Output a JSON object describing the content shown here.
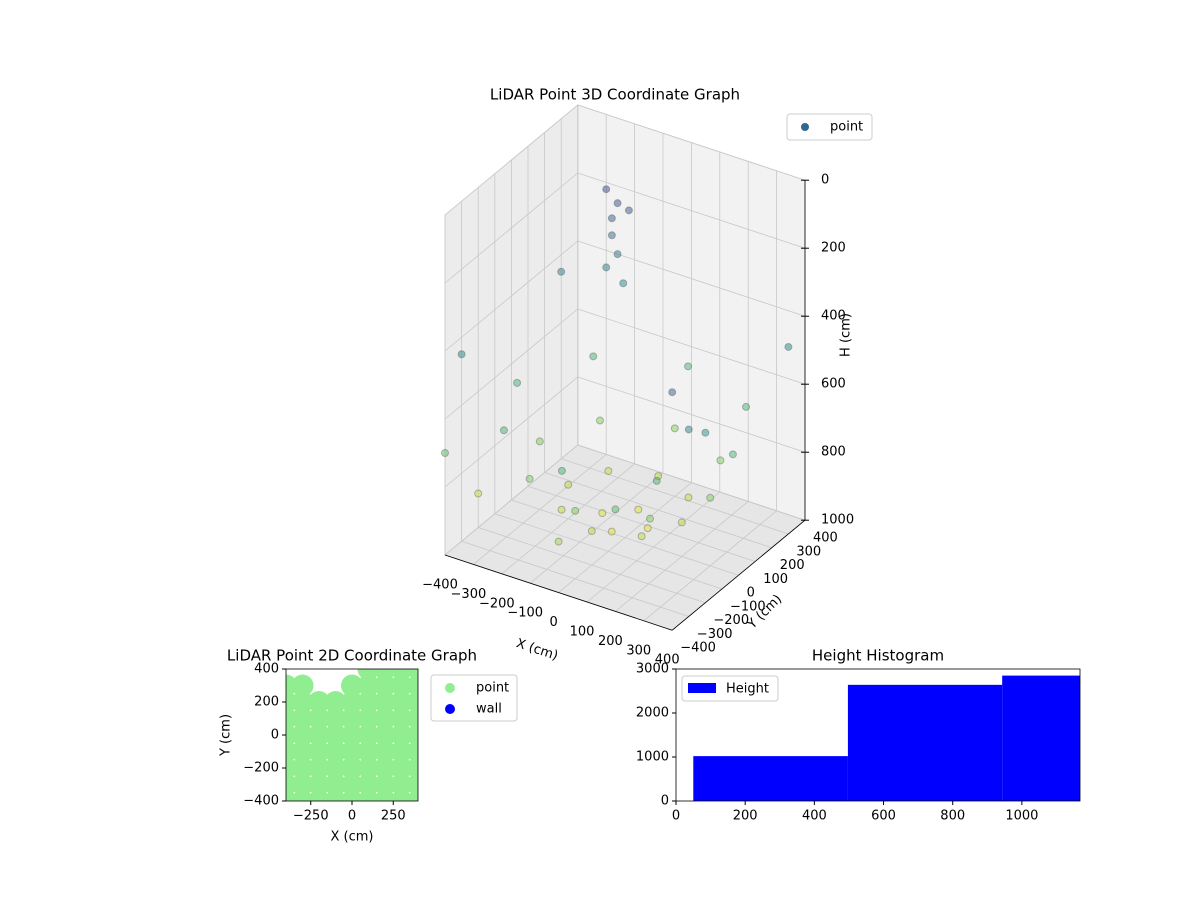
{
  "chart_data": [
    {
      "type": "scatter3d",
      "title": "LiDAR Point 3D Coordinate Graph",
      "xlabel": "X (cm)",
      "ylabel": "Y (cm)",
      "zlabel": "H (cm)",
      "series": [
        {
          "name": "point",
          "color": "#31688e",
          "x": [
            80,
            0,
            -80,
            0,
            200,
            141,
            0,
            -141,
            -200,
            -141,
            0,
            141,
            300,
            212,
            0,
            -212,
            -300,
            -212,
            0,
            212,
            380,
            269,
            0,
            -269,
            -380,
            -269,
            0,
            269,
            400,
            -400,
            400,
            -400,
            -300,
            -280,
            -260,
            -240,
            -220,
            -300,
            -280,
            -260,
            400,
            400,
            -400,
            -400,
            0,
            200
          ],
          "y": [
            0,
            80,
            0,
            -80,
            0,
            141,
            200,
            141,
            0,
            -141,
            -200,
            -141,
            0,
            212,
            300,
            212,
            0,
            -212,
            -300,
            -212,
            0,
            269,
            380,
            269,
            0,
            -269,
            -380,
            -269,
            300,
            300,
            -300,
            -300,
            400,
            400,
            400,
            400,
            400,
            400,
            400,
            400,
            -400,
            -200,
            -400,
            -200,
            -400,
            -400
          ],
          "z": [
            950,
            950,
            950,
            950,
            900,
            900,
            900,
            900,
            900,
            900,
            900,
            900,
            800,
            800,
            800,
            800,
            800,
            800,
            800,
            800,
            650,
            650,
            650,
            650,
            650,
            650,
            650,
            650,
            450,
            450,
            450,
            450,
            220,
            300,
            400,
            480,
            260,
            450,
            350,
            250,
            300,
            500,
            700,
            900,
            850,
            700
          ]
        }
      ],
      "xlim": [
        -400,
        400
      ],
      "ylim": [
        -400,
        400
      ],
      "zlim": [
        0,
        1000
      ],
      "z_inverted": true,
      "xticks": [
        {
          "value": -400,
          "label": "−400"
        },
        {
          "value": -300,
          "label": "−300"
        },
        {
          "value": -200,
          "label": "−200"
        },
        {
          "value": -100,
          "label": "−100"
        },
        0,
        100,
        200,
        300,
        400
      ],
      "yticks": [
        {
          "value": -400,
          "label": "−400"
        },
        {
          "value": -300,
          "label": "−300"
        },
        {
          "value": -200,
          "label": "−200"
        },
        {
          "value": -100,
          "label": "−100"
        },
        0,
        100,
        200,
        300,
        400
      ],
      "zticks": [
        0,
        200,
        400,
        600,
        800,
        1000
      ],
      "colormap": [
        "#440154",
        "#3b528b",
        "#21918c",
        "#5ec962",
        "#fde725"
      ],
      "legend": "upper right"
    },
    {
      "type": "scatter",
      "title": "LiDAR Point 2D Coordinate Graph",
      "xlabel": "X (cm)",
      "ylabel": "Y (cm)",
      "series": [
        {
          "name": "point",
          "color": "#90ee90",
          "x": [
            -400,
            -300,
            -200,
            -100,
            0,
            100,
            200,
            300,
            400,
            -400,
            -300,
            -200,
            -100,
            0,
            100,
            200,
            300,
            400,
            -400,
            -300,
            -200,
            -100,
            0,
            100,
            200,
            300,
            400,
            -400,
            -300,
            -200,
            -100,
            0,
            100,
            200,
            300,
            400,
            -400,
            -300,
            -200,
            -100,
            0,
            100,
            200,
            300,
            400,
            -400,
            -300,
            -200,
            -100,
            0,
            100,
            200,
            300,
            400,
            -400,
            -300,
            -200,
            -100,
            0,
            100,
            200,
            300,
            400,
            -400,
            -300,
            0,
            100,
            200,
            300,
            400,
            100,
            200,
            300,
            400
          ],
          "y": [
            -400,
            -400,
            -400,
            -400,
            -400,
            -400,
            -400,
            -400,
            -400,
            -300,
            -300,
            -300,
            -300,
            -300,
            -300,
            -300,
            -300,
            -300,
            -200,
            -200,
            -200,
            -200,
            -200,
            -200,
            -200,
            -200,
            -200,
            -100,
            -100,
            -100,
            -100,
            -100,
            -100,
            -100,
            -100,
            -100,
            0,
            0,
            0,
            0,
            0,
            0,
            0,
            0,
            0,
            100,
            100,
            100,
            100,
            100,
            100,
            100,
            100,
            100,
            200,
            200,
            200,
            200,
            200,
            200,
            200,
            200,
            200,
            300,
            300,
            300,
            300,
            300,
            300,
            300,
            400,
            400,
            400,
            400
          ]
        },
        {
          "name": "wall",
          "color": "#0000ff",
          "x": [],
          "y": []
        }
      ],
      "xlim": [
        -400,
        400
      ],
      "ylim": [
        -400,
        400
      ],
      "xticks": [
        {
          "value": -250,
          "label": "−250"
        },
        0,
        250
      ],
      "yticks": [
        {
          "value": -400,
          "label": "−400"
        },
        {
          "value": -200,
          "label": "−200"
        },
        0,
        200,
        400
      ],
      "legend": "outside upper right"
    },
    {
      "type": "histogram",
      "title": "Height Histogram",
      "name": "Height",
      "color": "#0000ff",
      "bins": [
        50,
        497,
        943,
        1168
      ],
      "values": [
        1020,
        2640,
        2850
      ],
      "xlim": [
        0,
        1168
      ],
      "ylim": [
        0,
        3000
      ],
      "xticks": [
        0,
        200,
        400,
        600,
        800,
        1000
      ],
      "yticks": [
        0,
        1000,
        2000,
        3000
      ],
      "legend": "upper left"
    }
  ]
}
